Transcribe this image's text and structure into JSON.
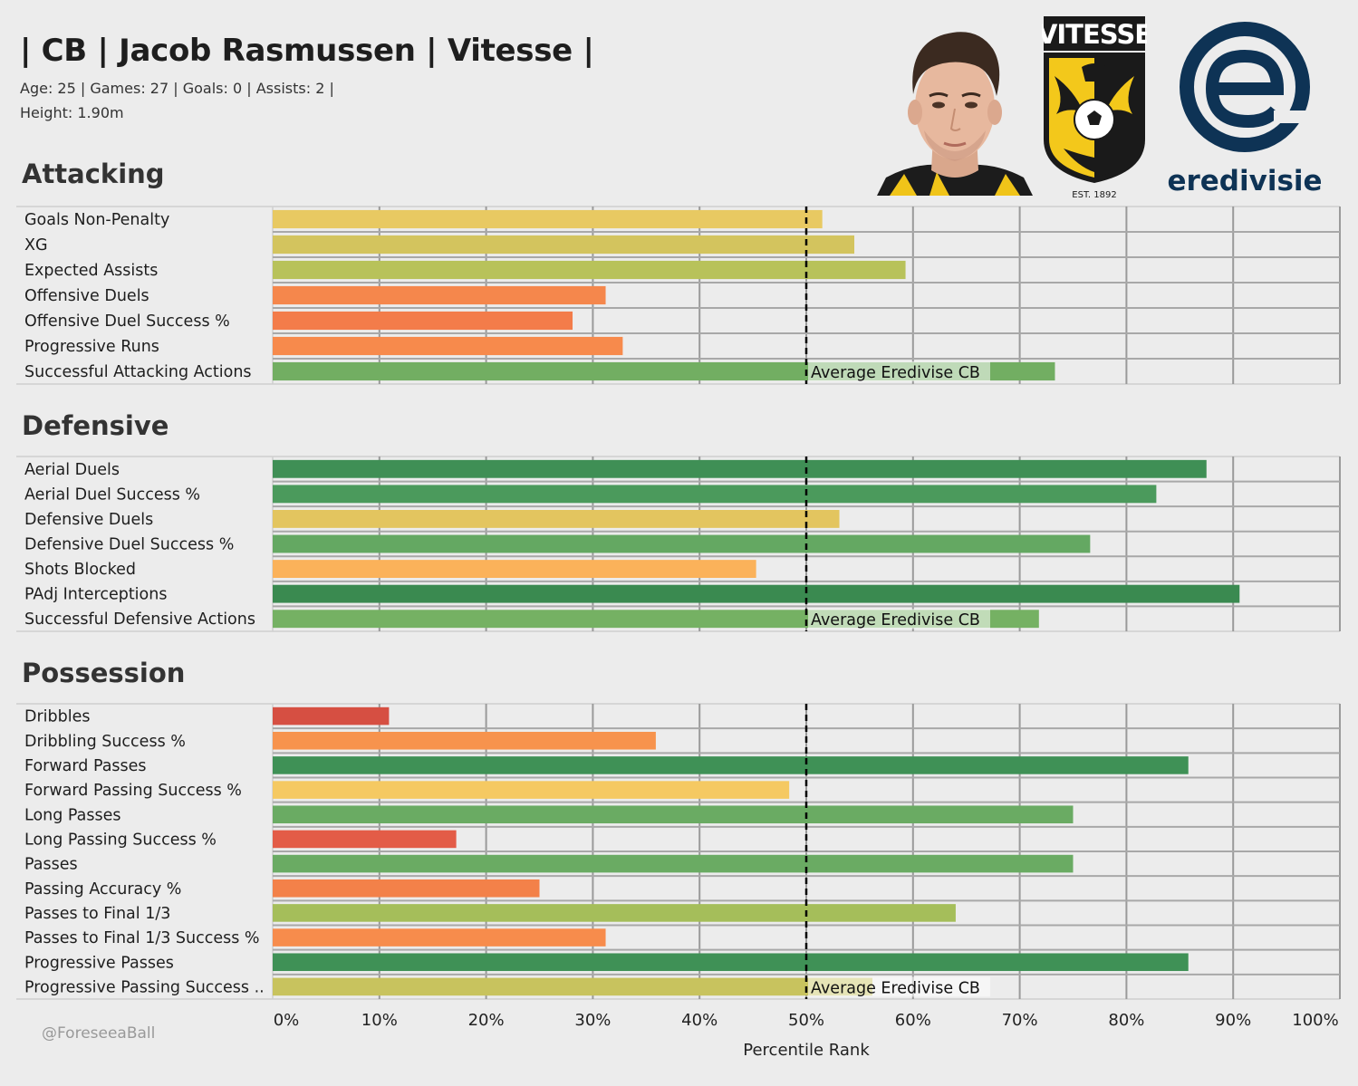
{
  "header": {
    "title": "| CB | Jacob Rasmussen | Vitesse |",
    "info_line": "Age: 25 | Games: 27 | Goals: 0 | Assists: 2  |",
    "height_line": "Height: 1.90m",
    "club_logo_text": "VITESSE",
    "club_est": "EST. 1892",
    "league_name": "eredivisie"
  },
  "footer": {
    "credit": "@ForeseeaBall"
  },
  "colors": {
    "background": "#ececec",
    "gridline": "#9a9a9a",
    "reference_line": "#000000",
    "navy": "#0e3355",
    "vitesse_yellow": "#f3c81b"
  },
  "chart_data": {
    "type": "bar",
    "orientation": "horizontal",
    "xlabel": "Percentile Rank",
    "xlim": [
      0,
      100
    ],
    "xticks": [
      "0%",
      "10%",
      "20%",
      "30%",
      "40%",
      "50%",
      "60%",
      "70%",
      "80%",
      "90%",
      "100%"
    ],
    "reference_line": {
      "value": 50,
      "label": "Average Eredivise CB",
      "style": "dashed"
    },
    "sections": [
      {
        "title": "Attacking",
        "categories": [
          "Goals Non-Penalty",
          "XG",
          "Expected Assists",
          "Offensive Duels",
          "Offensive Duel Success %",
          "Progressive Runs",
          "Successful Attacking Actions"
        ],
        "values": [
          51.5,
          54.5,
          59.3,
          31.2,
          28.1,
          32.8,
          73.3
        ],
        "colors": [
          "#e8c962",
          "#d3c45e",
          "#b8c25a",
          "#f5874c",
          "#f37c4a",
          "#f78a4c",
          "#72ae62"
        ]
      },
      {
        "title": "Defensive",
        "categories": [
          "Aerial Duels",
          "Aerial Duel Success %",
          "Defensive Duels",
          "Defensive Duel Success %",
          "Shots Blocked",
          "PAdj Interceptions",
          "Successful Defensive Actions"
        ],
        "values": [
          87.5,
          82.8,
          53.1,
          76.6,
          45.3,
          90.6,
          71.8
        ],
        "colors": [
          "#3f8f55",
          "#4b9a5c",
          "#e3c55f",
          "#64a862",
          "#fbb25a",
          "#3a8a50",
          "#75b163"
        ]
      },
      {
        "title": "Possession",
        "categories": [
          "Dribbles",
          "Dribbling Success %",
          "Forward Passes",
          "Forward Passing Success %",
          "Long Passes",
          "Long Passing Success %",
          "Passes",
          "Passing Accuracy %",
          "Passes to Final 1/3",
          "Passes to Final 1/3 Success %",
          "Progressive Passes",
          "Progressive Passing Success .."
        ],
        "values": [
          10.9,
          35.9,
          85.8,
          48.4,
          75.0,
          17.2,
          75.0,
          25.0,
          64.0,
          31.2,
          85.8,
          56.2
        ],
        "colors": [
          "#d64f42",
          "#f7934d",
          "#3f9156",
          "#f5c962",
          "#6aab63",
          "#e35c47",
          "#6aab63",
          "#f38149",
          "#a5be5a",
          "#f78c4c",
          "#3f9156",
          "#c8c35e"
        ]
      }
    ]
  }
}
